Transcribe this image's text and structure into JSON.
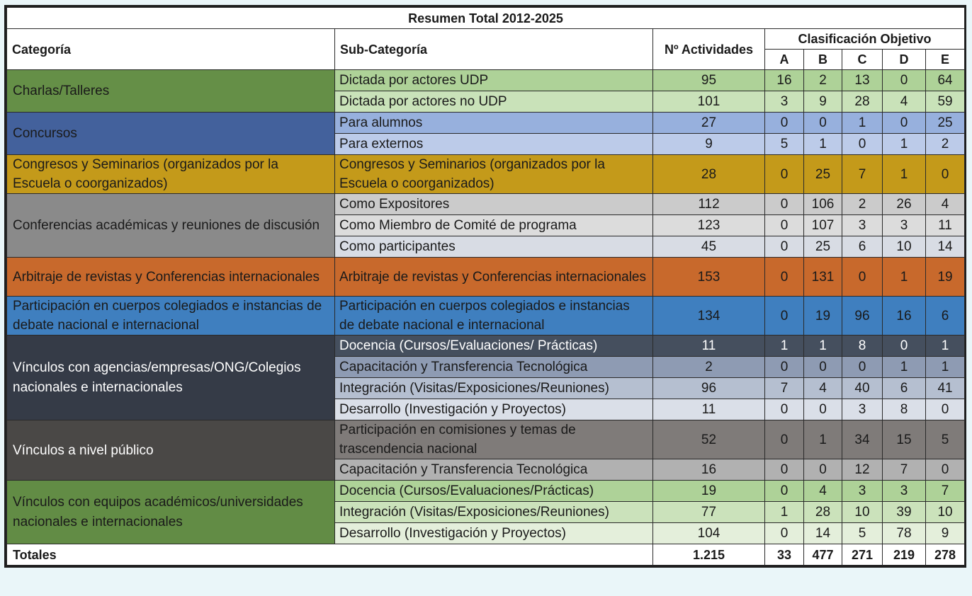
{
  "table": {
    "title": "Resumen Total 2012-2025",
    "headers": {
      "categoria": "Categoría",
      "subcategoria": "Sub-Categoría",
      "actividades": "Nº Actividades",
      "clasificacion": "Clasificación Objetivo",
      "classes": [
        "A",
        "B",
        "C",
        "D",
        "E"
      ]
    },
    "groups": [
      {
        "category": "Charlas/Talleres",
        "color": "#658f47",
        "text_color": "#1a1a1a",
        "rows": [
          {
            "sub": "Dictada por actores UDP",
            "total": "95",
            "values": [
              "16",
              "2",
              "13",
              "0",
              "64"
            ],
            "color": "#aed298",
            "text_color": "#1a1a1a"
          },
          {
            "sub": "Dictada por actores no UDP",
            "total": "101",
            "values": [
              "3",
              "9",
              "28",
              "4",
              "59"
            ],
            "color": "#c9e2b9",
            "text_color": "#1a1a1a"
          }
        ]
      },
      {
        "category": "Concursos",
        "color": "#43619c",
        "text_color": "#1a1a1a",
        "rows": [
          {
            "sub": "Para alumnos",
            "total": "27",
            "values": [
              "0",
              "0",
              "1",
              "0",
              "25"
            ],
            "color": "#97b0dd",
            "text_color": "#1a1a1a"
          },
          {
            "sub": "Para externos",
            "total": "9",
            "values": [
              "5",
              "1",
              "0",
              "1",
              "2"
            ],
            "color": "#bccbe9",
            "text_color": "#1a1a1a"
          }
        ]
      },
      {
        "category": "Congresos y Seminarios (organizados por la Escuela o coorganizados)",
        "color": "#c49a1a",
        "text_color": "#1a1a1a",
        "rows": [
          {
            "sub": "Congresos y Seminarios (organizados por la Escuela o coorganizados)",
            "total": "28",
            "values": [
              "0",
              "25",
              "7",
              "1",
              "0"
            ],
            "color": "#c49a1a",
            "text_color": "#1a1a1a",
            "tall": true
          }
        ]
      },
      {
        "category": "Conferencias académicas y reuniones de discusión",
        "color": "#8a8a8a",
        "text_color": "#1a1a1a",
        "rows": [
          {
            "sub": "Como Expositores",
            "total": "112",
            "values": [
              "0",
              "106",
              "2",
              "26",
              "4"
            ],
            "color": "#cbcbcb",
            "text_color": "#1a1a1a"
          },
          {
            "sub": "Como Miembro de Comité de programa",
            "total": "123",
            "values": [
              "0",
              "107",
              "3",
              "3",
              "11"
            ],
            "color": "#dcdcdc",
            "text_color": "#1a1a1a"
          },
          {
            "sub": "Como participantes",
            "total": "45",
            "values": [
              "0",
              "25",
              "6",
              "10",
              "14"
            ],
            "color": "#d8dce4",
            "text_color": "#1a1a1a"
          }
        ]
      },
      {
        "category": "Arbitraje de revistas y Conferencias internacionales",
        "color": "#c8692c",
        "text_color": "#1a1a1a",
        "rows": [
          {
            "sub": "Arbitraje de revistas y Conferencias internacionales",
            "total": "153",
            "values": [
              "0",
              "131",
              "0",
              "1",
              "19"
            ],
            "color": "#c8692c",
            "text_color": "#1a1a1a",
            "tall": true
          }
        ]
      },
      {
        "category": "Participación en cuerpos colegiados e instancias de debate nacional e internacional",
        "color": "#3f7fbf",
        "text_color": "#1a1a1a",
        "rows": [
          {
            "sub": "Participación en cuerpos colegiados e instancias de debate nacional e internacional",
            "total": "134",
            "values": [
              "0",
              "19",
              "96",
              "16",
              "6"
            ],
            "color": "#3f7fbf",
            "text_color": "#1a1a1a",
            "tall": true
          }
        ]
      },
      {
        "category": "Vínculos con agencias/empresas/ONG/Colegios nacionales e internacionales",
        "color": "#353b47",
        "text_color": "#ffffff",
        "rows": [
          {
            "sub": "Docencia (Cursos/Evaluaciones/ Prácticas)",
            "total": "11",
            "values": [
              "1",
              "1",
              "8",
              "0",
              "1"
            ],
            "color": "#454f5e",
            "text_color": "#ffffff"
          },
          {
            "sub": "Capacitación y Transferencia Tecnológica",
            "total": "2",
            "values": [
              "0",
              "0",
              "0",
              "1",
              "1"
            ],
            "color": "#8e9bb3",
            "text_color": "#1a1a1a"
          },
          {
            "sub": "Integración (Visitas/Exposiciones/Reuniones)",
            "total": "96",
            "values": [
              "7",
              "4",
              "40",
              "6",
              "41"
            ],
            "color": "#b5bfd0",
            "text_color": "#1a1a1a"
          },
          {
            "sub": "Desarrollo (Investigación y Proyectos)",
            "total": "11",
            "values": [
              "0",
              "0",
              "3",
              "8",
              "0"
            ],
            "color": "#dadfe8",
            "text_color": "#1a1a1a"
          }
        ]
      },
      {
        "category": "Vínculos a nivel público",
        "color": "#4a4846",
        "text_color": "#ffffff",
        "rows": [
          {
            "sub": "Participación en comisiones y temas de trascendencia nacional",
            "total": "52",
            "values": [
              "0",
              "1",
              "34",
              "15",
              "5"
            ],
            "color": "#7f7b79",
            "text_color": "#1a1a1a",
            "tall": true
          },
          {
            "sub": "Capacitación y Transferencia Tecnológica",
            "total": "16",
            "values": [
              "0",
              "0",
              "12",
              "7",
              "0"
            ],
            "color": "#b1b1b1",
            "text_color": "#1a1a1a"
          }
        ]
      },
      {
        "category": "Vínculos con equipos académicos/universidades nacionales e internacionales",
        "color": "#628c45",
        "text_color": "#1a1a1a",
        "rows": [
          {
            "sub": "Docencia (Cursos/Evaluaciones/Prácticas)",
            "total": "19",
            "values": [
              "0",
              "4",
              "3",
              "3",
              "7"
            ],
            "color": "#aed298",
            "text_color": "#1a1a1a"
          },
          {
            "sub": "Integración (Visitas/Exposiciones/Reuniones)",
            "total": "77",
            "values": [
              "1",
              "28",
              "10",
              "39",
              "10"
            ],
            "color": "#cbe2bb",
            "text_color": "#1a1a1a"
          },
          {
            "sub": "Desarrollo (Investigación y Proyectos)",
            "total": "104",
            "values": [
              "0",
              "14",
              "5",
              "78",
              "9"
            ],
            "color": "#e4efdb",
            "text_color": "#1a1a1a"
          }
        ]
      }
    ],
    "totals": {
      "label": "Totales",
      "total": "1.215",
      "values": [
        "33",
        "477",
        "271",
        "219",
        "278"
      ]
    }
  }
}
